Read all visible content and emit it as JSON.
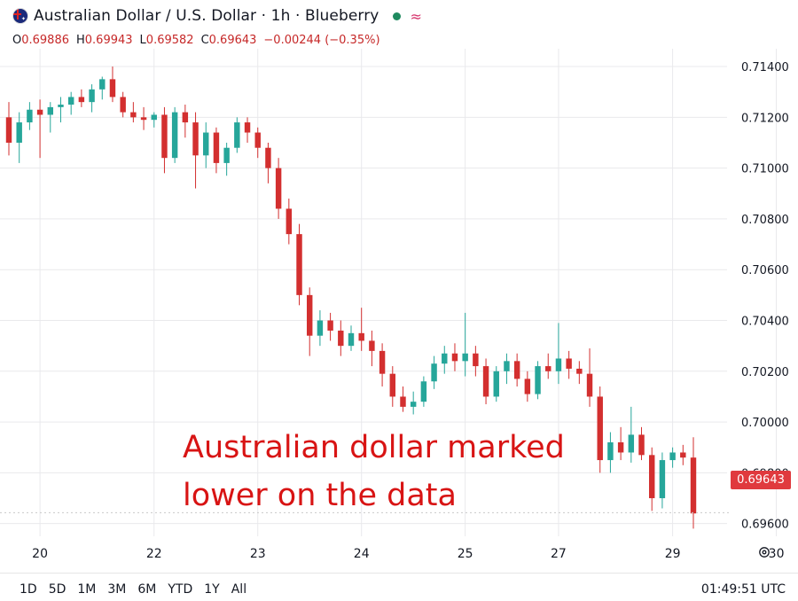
{
  "header": {
    "title": "Australian Dollar / U.S. Dollar · 1h · Blueberry",
    "approx_symbol": "≈",
    "ohlc": {
      "o_label": "O",
      "o": "0.69886",
      "h_label": "H",
      "h": "0.69943",
      "l_label": "L",
      "l": "0.69582",
      "c_label": "C",
      "c": "0.69643",
      "change": "−0.00244 (−0.35%)"
    }
  },
  "annotation": {
    "line1": "Australian dollar marked",
    "line2": "lower on the data"
  },
  "last_price_label": "0.69643",
  "ranges": [
    "1D",
    "5D",
    "1M",
    "3M",
    "6M",
    "YTD",
    "1Y",
    "All"
  ],
  "clock": "01:49:51 UTC",
  "colors": {
    "up": "#26a69a",
    "down": "#d32f2f",
    "grid": "#e9e9ec",
    "annotation": "#d81414",
    "last_price": "#e03a3e"
  },
  "chart_data": {
    "type": "candlestick",
    "ylim": [
      0.6955,
      0.7147
    ],
    "y_ticks": [
      "0.71400",
      "0.71200",
      "0.71000",
      "0.70800",
      "0.70600",
      "0.70400",
      "0.70200",
      "0.70000",
      "0.69800",
      "0.69600"
    ],
    "y_tick_values": [
      0.714,
      0.712,
      0.71,
      0.708,
      0.706,
      0.704,
      0.702,
      0.7,
      0.698,
      0.696
    ],
    "x_ticks": [
      {
        "label": "20",
        "index": 3
      },
      {
        "label": "22",
        "index": 14
      },
      {
        "label": "23",
        "index": 24
      },
      {
        "label": "24",
        "index": 34
      },
      {
        "label": "25",
        "index": 44
      },
      {
        "label": "27",
        "index": 53
      },
      {
        "label": "29",
        "index": 64
      },
      {
        "label": "30",
        "index": 74
      }
    ],
    "last_price": 0.69643,
    "candles": [
      {
        "o": 0.712,
        "h": 0.7126,
        "l": 0.7105,
        "c": 0.711
      },
      {
        "o": 0.711,
        "h": 0.7122,
        "l": 0.7102,
        "c": 0.7118
      },
      {
        "o": 0.7118,
        "h": 0.7126,
        "l": 0.7115,
        "c": 0.7123
      },
      {
        "o": 0.7123,
        "h": 0.7127,
        "l": 0.7104,
        "c": 0.7121
      },
      {
        "o": 0.7121,
        "h": 0.7126,
        "l": 0.7114,
        "c": 0.7124
      },
      {
        "o": 0.7124,
        "h": 0.7128,
        "l": 0.7118,
        "c": 0.7125
      },
      {
        "o": 0.7125,
        "h": 0.713,
        "l": 0.7121,
        "c": 0.7128
      },
      {
        "o": 0.7128,
        "h": 0.7131,
        "l": 0.7124,
        "c": 0.7126
      },
      {
        "o": 0.7126,
        "h": 0.7133,
        "l": 0.7122,
        "c": 0.7131
      },
      {
        "o": 0.7131,
        "h": 0.7136,
        "l": 0.7127,
        "c": 0.7135
      },
      {
        "o": 0.7135,
        "h": 0.714,
        "l": 0.7126,
        "c": 0.7128
      },
      {
        "o": 0.7128,
        "h": 0.713,
        "l": 0.712,
        "c": 0.7122
      },
      {
        "o": 0.7122,
        "h": 0.7126,
        "l": 0.7118,
        "c": 0.712
      },
      {
        "o": 0.712,
        "h": 0.7124,
        "l": 0.7115,
        "c": 0.7119
      },
      {
        "o": 0.7119,
        "h": 0.7122,
        "l": 0.7116,
        "c": 0.7121
      },
      {
        "o": 0.7121,
        "h": 0.7124,
        "l": 0.7098,
        "c": 0.7104
      },
      {
        "o": 0.7104,
        "h": 0.7124,
        "l": 0.7102,
        "c": 0.7122
      },
      {
        "o": 0.7122,
        "h": 0.7125,
        "l": 0.7112,
        "c": 0.7118
      },
      {
        "o": 0.7118,
        "h": 0.7122,
        "l": 0.7092,
        "c": 0.7105
      },
      {
        "o": 0.7105,
        "h": 0.7118,
        "l": 0.71,
        "c": 0.7114
      },
      {
        "o": 0.7114,
        "h": 0.7116,
        "l": 0.7098,
        "c": 0.7102
      },
      {
        "o": 0.7102,
        "h": 0.711,
        "l": 0.7097,
        "c": 0.7108
      },
      {
        "o": 0.7108,
        "h": 0.712,
        "l": 0.7106,
        "c": 0.7118
      },
      {
        "o": 0.7118,
        "h": 0.712,
        "l": 0.711,
        "c": 0.7114
      },
      {
        "o": 0.7114,
        "h": 0.7116,
        "l": 0.7104,
        "c": 0.7108
      },
      {
        "o": 0.7108,
        "h": 0.711,
        "l": 0.7094,
        "c": 0.71
      },
      {
        "o": 0.71,
        "h": 0.7104,
        "l": 0.708,
        "c": 0.7084
      },
      {
        "o": 0.7084,
        "h": 0.7088,
        "l": 0.707,
        "c": 0.7074
      },
      {
        "o": 0.7074,
        "h": 0.7078,
        "l": 0.7046,
        "c": 0.705
      },
      {
        "o": 0.705,
        "h": 0.7053,
        "l": 0.7026,
        "c": 0.7034
      },
      {
        "o": 0.7034,
        "h": 0.7044,
        "l": 0.703,
        "c": 0.704
      },
      {
        "o": 0.704,
        "h": 0.7043,
        "l": 0.7032,
        "c": 0.7036
      },
      {
        "o": 0.7036,
        "h": 0.704,
        "l": 0.7026,
        "c": 0.703
      },
      {
        "o": 0.703,
        "h": 0.7038,
        "l": 0.7028,
        "c": 0.7035
      },
      {
        "o": 0.7035,
        "h": 0.7045,
        "l": 0.7028,
        "c": 0.7032
      },
      {
        "o": 0.7032,
        "h": 0.7036,
        "l": 0.7022,
        "c": 0.7028
      },
      {
        "o": 0.7028,
        "h": 0.7031,
        "l": 0.7014,
        "c": 0.7019
      },
      {
        "o": 0.7019,
        "h": 0.7022,
        "l": 0.7006,
        "c": 0.701
      },
      {
        "o": 0.701,
        "h": 0.7014,
        "l": 0.7004,
        "c": 0.7006
      },
      {
        "o": 0.7006,
        "h": 0.7012,
        "l": 0.7003,
        "c": 0.7008
      },
      {
        "o": 0.7008,
        "h": 0.7018,
        "l": 0.7006,
        "c": 0.7016
      },
      {
        "o": 0.7016,
        "h": 0.7026,
        "l": 0.7013,
        "c": 0.7023
      },
      {
        "o": 0.7023,
        "h": 0.703,
        "l": 0.7019,
        "c": 0.7027
      },
      {
        "o": 0.7027,
        "h": 0.7031,
        "l": 0.702,
        "c": 0.7024
      },
      {
        "o": 0.7024,
        "h": 0.7043,
        "l": 0.7018,
        "c": 0.7027
      },
      {
        "o": 0.7027,
        "h": 0.703,
        "l": 0.7018,
        "c": 0.7022
      },
      {
        "o": 0.7022,
        "h": 0.7025,
        "l": 0.7007,
        "c": 0.701
      },
      {
        "o": 0.701,
        "h": 0.7022,
        "l": 0.7008,
        "c": 0.702
      },
      {
        "o": 0.702,
        "h": 0.7027,
        "l": 0.7015,
        "c": 0.7024
      },
      {
        "o": 0.7024,
        "h": 0.7027,
        "l": 0.7014,
        "c": 0.7017
      },
      {
        "o": 0.7017,
        "h": 0.702,
        "l": 0.7008,
        "c": 0.7011
      },
      {
        "o": 0.7011,
        "h": 0.7024,
        "l": 0.7009,
        "c": 0.7022
      },
      {
        "o": 0.7022,
        "h": 0.7027,
        "l": 0.7017,
        "c": 0.702
      },
      {
        "o": 0.702,
        "h": 0.7039,
        "l": 0.7015,
        "c": 0.7025
      },
      {
        "o": 0.7025,
        "h": 0.7028,
        "l": 0.7017,
        "c": 0.7021
      },
      {
        "o": 0.7021,
        "h": 0.7024,
        "l": 0.7015,
        "c": 0.7019
      },
      {
        "o": 0.7019,
        "h": 0.7029,
        "l": 0.7006,
        "c": 0.701
      },
      {
        "o": 0.701,
        "h": 0.7014,
        "l": 0.698,
        "c": 0.6985
      },
      {
        "o": 0.6985,
        "h": 0.6996,
        "l": 0.698,
        "c": 0.6992
      },
      {
        "o": 0.6992,
        "h": 0.6998,
        "l": 0.6985,
        "c": 0.6988
      },
      {
        "o": 0.6988,
        "h": 0.7006,
        "l": 0.6984,
        "c": 0.6995
      },
      {
        "o": 0.6995,
        "h": 0.6998,
        "l": 0.6985,
        "c": 0.6987
      },
      {
        "o": 0.6987,
        "h": 0.699,
        "l": 0.6965,
        "c": 0.697
      },
      {
        "o": 0.697,
        "h": 0.6988,
        "l": 0.6966,
        "c": 0.6985
      },
      {
        "o": 0.6985,
        "h": 0.699,
        "l": 0.6982,
        "c": 0.6988
      },
      {
        "o": 0.6988,
        "h": 0.6991,
        "l": 0.6983,
        "c": 0.6986
      },
      {
        "o": 0.6986,
        "h": 0.6994,
        "l": 0.6958,
        "c": 0.6964
      }
    ]
  }
}
